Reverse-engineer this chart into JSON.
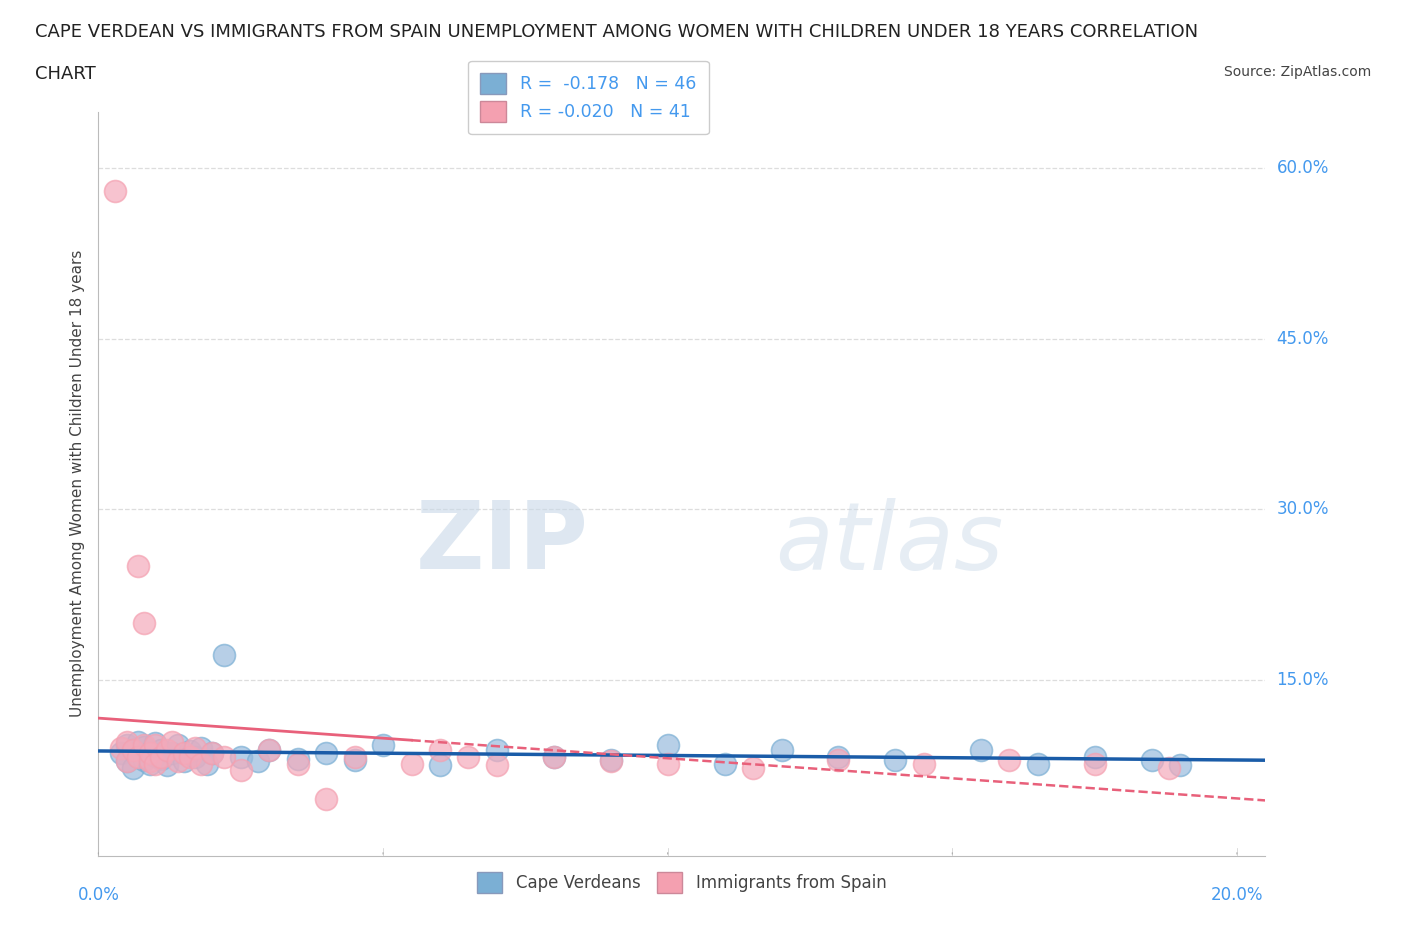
{
  "title_line1": "CAPE VERDEAN VS IMMIGRANTS FROM SPAIN UNEMPLOYMENT AMONG WOMEN WITH CHILDREN UNDER 18 YEARS CORRELATION",
  "title_line2": "CHART",
  "source": "Source: ZipAtlas.com",
  "ylabel": "Unemployment Among Women with Children Under 18 years",
  "xlim": [
    0.0,
    0.205
  ],
  "ylim": [
    -0.005,
    0.65
  ],
  "yticks": [
    0.0,
    0.15,
    0.3,
    0.45,
    0.6
  ],
  "xticks": [
    0.0,
    0.05,
    0.1,
    0.15,
    0.2
  ],
  "R_blue": -0.178,
  "N_blue": 46,
  "R_pink": -0.02,
  "N_pink": 41,
  "blue_color": "#7BAFD4",
  "pink_color": "#F4A0B0",
  "blue_line_color": "#1A5CA8",
  "pink_line_color": "#E8607A",
  "blue_scatter_color": "#99BBDD",
  "pink_scatter_color": "#F4AABB",
  "watermark_zip": "ZIP",
  "watermark_atlas": "atlas",
  "blue_x": [
    0.004,
    0.005,
    0.005,
    0.006,
    0.006,
    0.007,
    0.007,
    0.008,
    0.008,
    0.009,
    0.009,
    0.01,
    0.01,
    0.011,
    0.011,
    0.012,
    0.013,
    0.014,
    0.015,
    0.016,
    0.017,
    0.018,
    0.019,
    0.02,
    0.022,
    0.025,
    0.028,
    0.03,
    0.035,
    0.04,
    0.045,
    0.05,
    0.06,
    0.07,
    0.08,
    0.09,
    0.1,
    0.11,
    0.12,
    0.13,
    0.14,
    0.155,
    0.165,
    0.175,
    0.185,
    0.19
  ],
  "blue_y": [
    0.085,
    0.092,
    0.078,
    0.088,
    0.072,
    0.082,
    0.095,
    0.079,
    0.091,
    0.086,
    0.076,
    0.083,
    0.094,
    0.08,
    0.088,
    0.075,
    0.085,
    0.092,
    0.078,
    0.087,
    0.082,
    0.09,
    0.076,
    0.085,
    0.172,
    0.082,
    0.078,
    0.088,
    0.08,
    0.085,
    0.079,
    0.092,
    0.075,
    0.088,
    0.082,
    0.079,
    0.092,
    0.076,
    0.088,
    0.082,
    0.079,
    0.088,
    0.076,
    0.082,
    0.079,
    0.075
  ],
  "pink_x": [
    0.003,
    0.004,
    0.005,
    0.005,
    0.006,
    0.007,
    0.007,
    0.008,
    0.008,
    0.009,
    0.009,
    0.01,
    0.01,
    0.011,
    0.012,
    0.013,
    0.014,
    0.015,
    0.016,
    0.017,
    0.018,
    0.02,
    0.022,
    0.025,
    0.03,
    0.035,
    0.04,
    0.045,
    0.055,
    0.06,
    0.065,
    0.07,
    0.08,
    0.09,
    0.1,
    0.115,
    0.13,
    0.145,
    0.16,
    0.175,
    0.188
  ],
  "pink_y": [
    0.58,
    0.09,
    0.095,
    0.078,
    0.088,
    0.25,
    0.082,
    0.2,
    0.092,
    0.078,
    0.085,
    0.092,
    0.076,
    0.082,
    0.088,
    0.095,
    0.078,
    0.085,
    0.082,
    0.09,
    0.076,
    0.085,
    0.082,
    0.07,
    0.088,
    0.076,
    0.045,
    0.082,
    0.076,
    0.088,
    0.082,
    0.075,
    0.082,
    0.078,
    0.076,
    0.072,
    0.079,
    0.076,
    0.079,
    0.076,
    0.072
  ]
}
